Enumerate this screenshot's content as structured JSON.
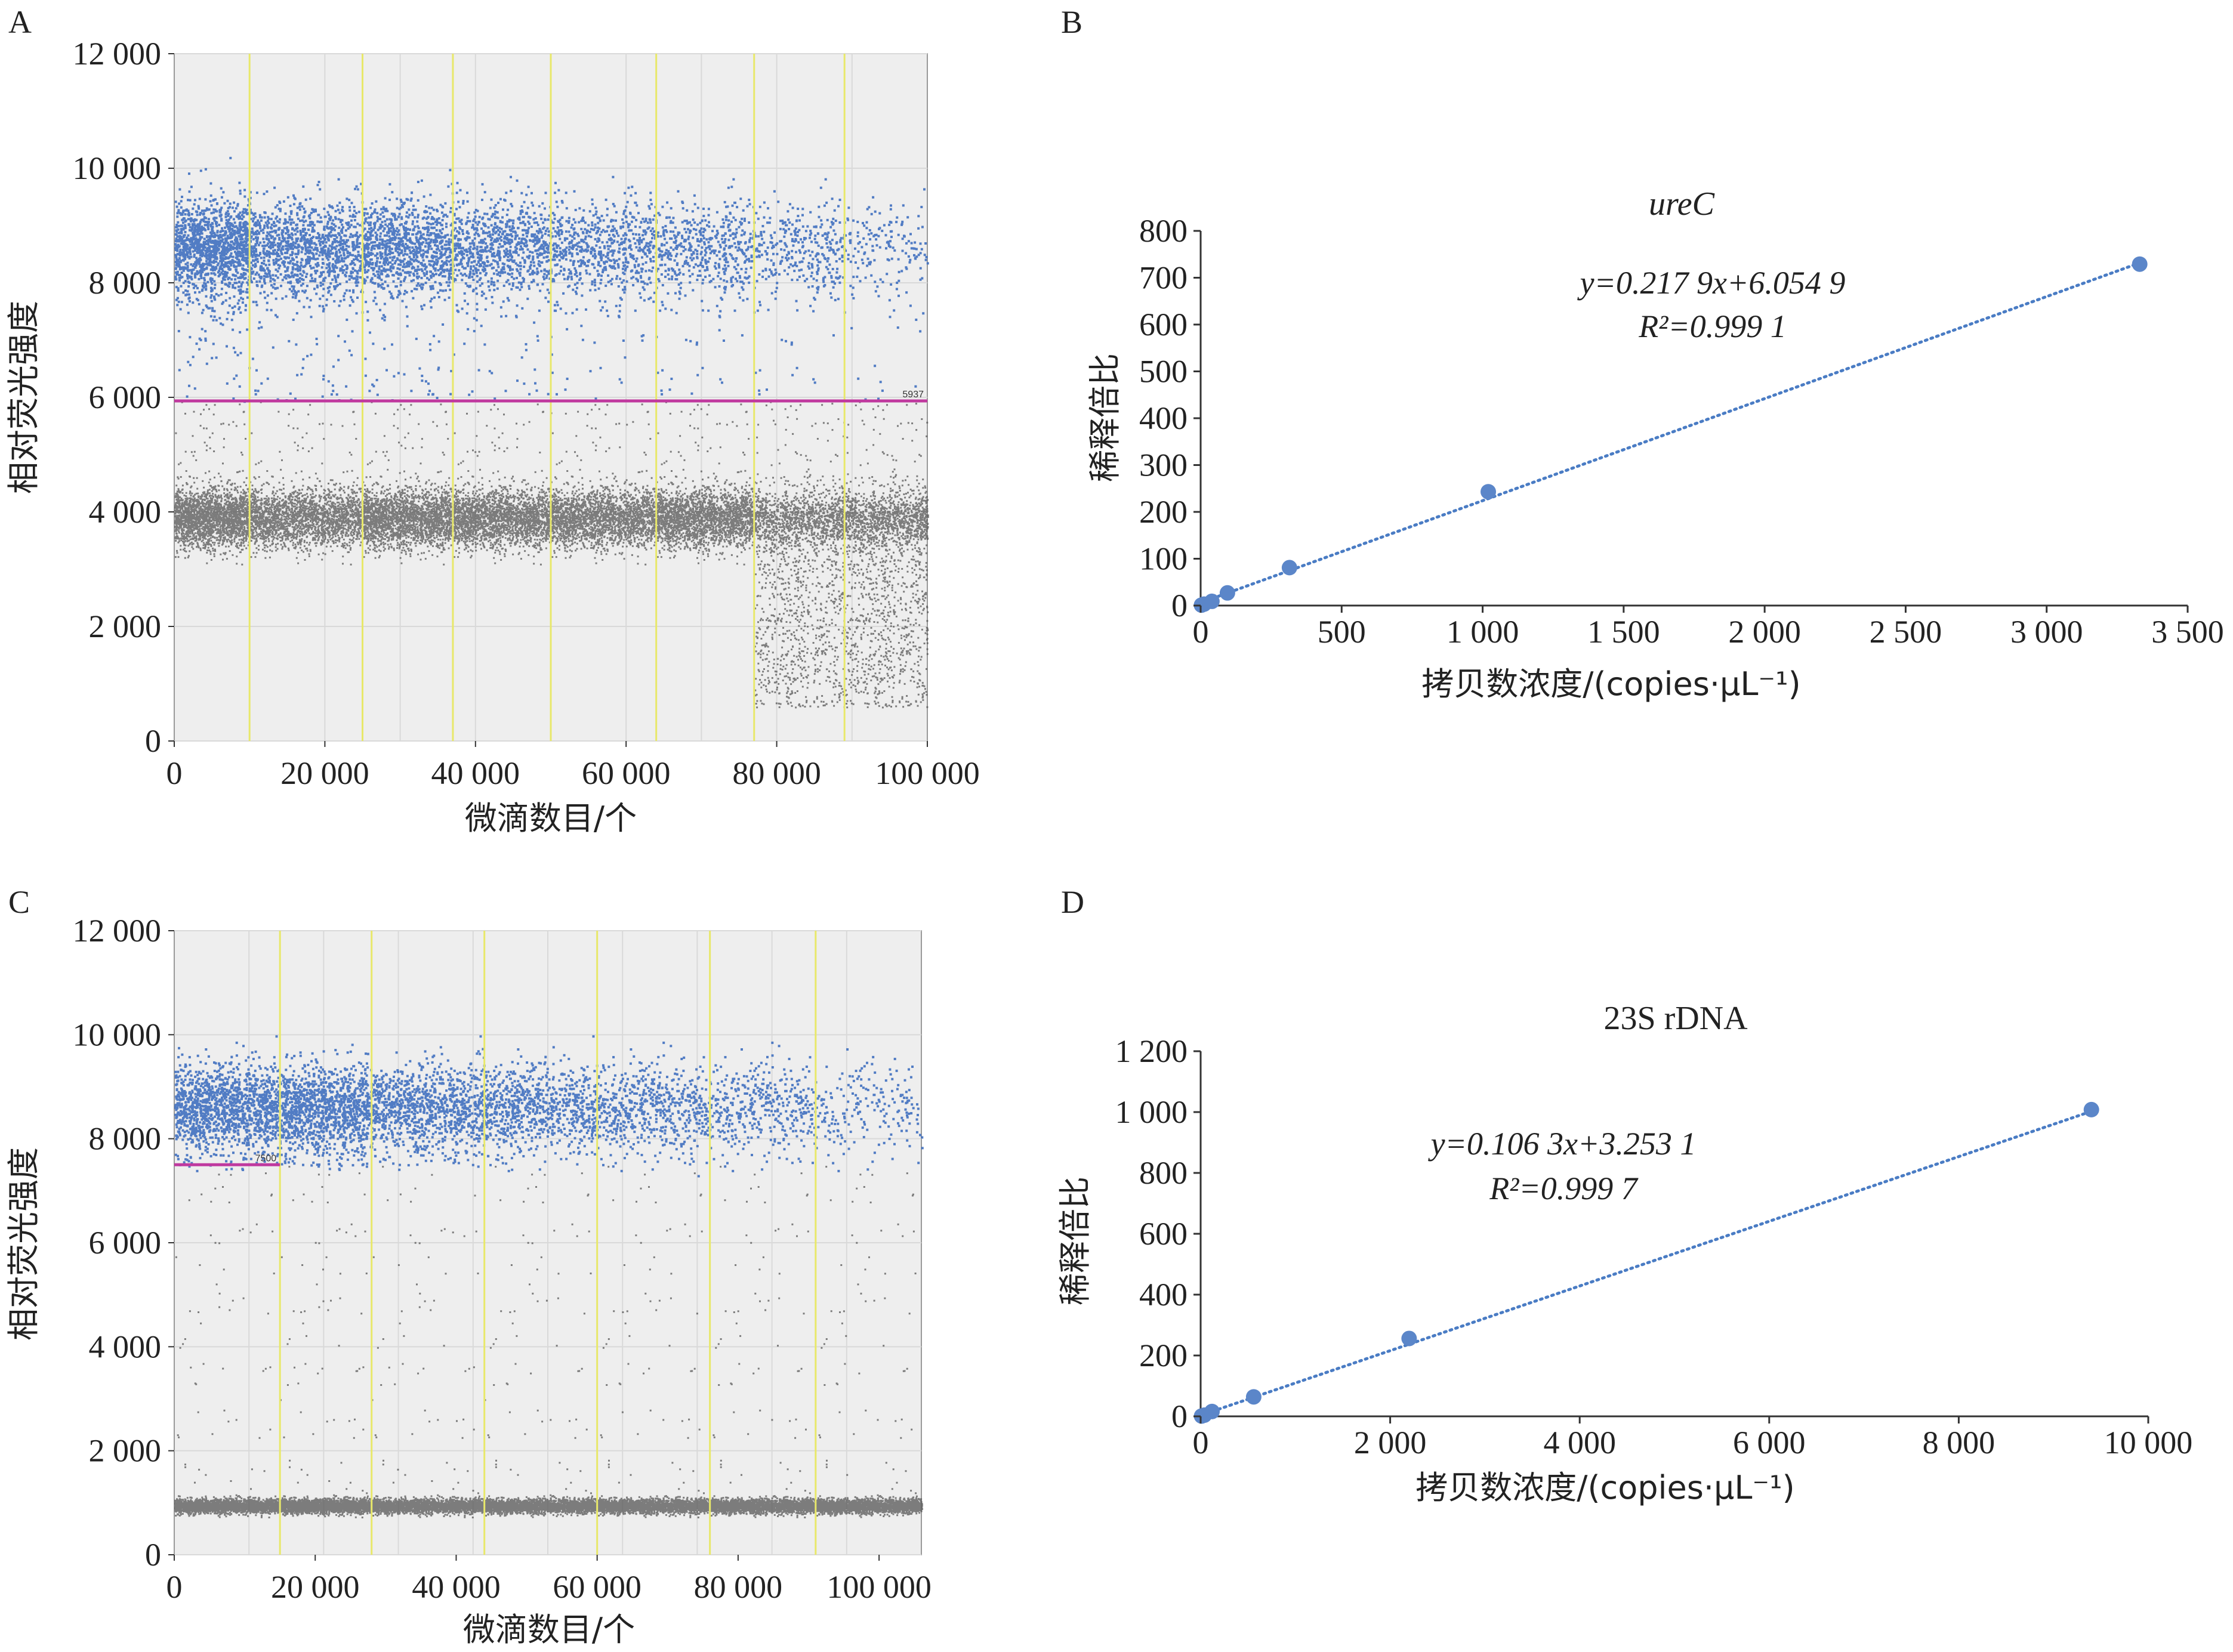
{
  "panels": {
    "A": {
      "letter": "A",
      "ylabel": "相对荧光强度",
      "xlabel": "微滴数目/个"
    },
    "B": {
      "letter": "B",
      "ylabel": "稀释倍比",
      "xlabel": "拷贝数浓度/(copies·μL⁻¹)",
      "title": "ureC",
      "equation": "y=0.217 9x+6.054 9",
      "r2": "R²=0.999 1"
    },
    "C": {
      "letter": "C",
      "ylabel": "相对荧光强度",
      "xlabel": "微滴数目/个"
    },
    "D": {
      "letter": "D",
      "ylabel": "稀释倍比",
      "xlabel": "拷贝数浓度/(copies·μL⁻¹)",
      "title": "23S rDNA",
      "equation": "y=0.106 3x+3.253 1",
      "r2": "R²=0.999 7"
    }
  },
  "colors": {
    "positive": "#3f6fbf",
    "negative": "#555555",
    "threshold": "#c0399f",
    "well_divider": "#e8e86a",
    "fit": "#4a7cc4",
    "marker": "#5b86c9"
  },
  "chart_data": [
    {
      "type": "scatter",
      "panel": "A",
      "xlabel": "微滴数目/个",
      "ylabel": "相对荧光强度",
      "xlim": [
        0,
        100000
      ],
      "ylim": [
        0,
        12000
      ],
      "xticks": [
        0,
        20000,
        40000,
        60000,
        80000,
        100000
      ],
      "xtick_labels": [
        "0",
        "20 000",
        "40 000",
        "60 000",
        "80 000",
        "100 000"
      ],
      "yticks": [
        0,
        2000,
        4000,
        6000,
        8000,
        10000,
        12000
      ],
      "ytick_labels": [
        "0",
        "2 000",
        "4 000",
        "6 000",
        "8 000",
        "10 000",
        "12 000"
      ],
      "threshold": 5937,
      "threshold_label": "5937",
      "well_boundaries": [
        10000,
        25000,
        37000,
        50000,
        64000,
        77000,
        89000
      ],
      "positive_band_center": 8600,
      "negative_band_center": 3900,
      "grid": true
    },
    {
      "type": "scatter",
      "panel": "B",
      "title": "ureC",
      "xlabel": "拷贝数浓度/(copies·μL⁻¹)",
      "ylabel": "稀释倍比",
      "xlim": [
        0,
        3500
      ],
      "ylim": [
        0,
        800
      ],
      "xticks": [
        0,
        500,
        1000,
        1500,
        2000,
        2500,
        3000,
        3500
      ],
      "xtick_labels": [
        "0",
        "500",
        "1 000",
        "1 500",
        "2 000",
        "2 500",
        "3 000",
        "3 500"
      ],
      "yticks": [
        0,
        100,
        200,
        300,
        400,
        500,
        600,
        700,
        800
      ],
      "ytick_labels": [
        "0",
        "100",
        "200",
        "300",
        "400",
        "500",
        "600",
        "700",
        "800"
      ],
      "points": [
        [
          3,
          1
        ],
        [
          12,
          3
        ],
        [
          40,
          9
        ],
        [
          95,
          27
        ],
        [
          315,
          81
        ],
        [
          1020,
          243
        ],
        [
          3330,
          729
        ]
      ],
      "fit": {
        "slope": 0.2179,
        "intercept": 6.0549
      },
      "grid": false
    },
    {
      "type": "scatter",
      "panel": "C",
      "xlabel": "微滴数目/个",
      "ylabel": "相对荧光强度",
      "xlim": [
        0,
        106000
      ],
      "ylim": [
        0,
        12000
      ],
      "xticks": [
        0,
        20000,
        40000,
        60000,
        80000,
        100000
      ],
      "xtick_labels": [
        "0",
        "20 000",
        "40 000",
        "60 000",
        "80 000",
        "100 000"
      ],
      "yticks": [
        0,
        2000,
        4000,
        6000,
        8000,
        10000,
        12000
      ],
      "ytick_labels": [
        "0",
        "2 000",
        "4 000",
        "6 000",
        "8 000",
        "10 000",
        "12 000"
      ],
      "threshold": 7500,
      "threshold_label": "7500",
      "well_boundaries": [
        15000,
        28000,
        44000,
        60000,
        76000,
        91000
      ],
      "positive_band_center": 8600,
      "negative_band_center": 950,
      "grid": true
    },
    {
      "type": "scatter",
      "panel": "D",
      "title": "23S rDNA",
      "xlabel": "拷贝数浓度/(copies·μL⁻¹)",
      "ylabel": "稀释倍比",
      "xlim": [
        0,
        10000
      ],
      "ylim": [
        0,
        1200
      ],
      "xticks": [
        0,
        2000,
        4000,
        6000,
        8000,
        10000
      ],
      "xtick_labels": [
        "0",
        "2 000",
        "4 000",
        "6 000",
        "8 000",
        "10 000"
      ],
      "yticks": [
        0,
        200,
        400,
        600,
        800,
        1000,
        1200
      ],
      "ytick_labels": [
        "0",
        "200",
        "400",
        "600",
        "800",
        "1 000",
        "1 200"
      ],
      "points": [
        [
          10,
          1
        ],
        [
          40,
          4
        ],
        [
          120,
          16
        ],
        [
          560,
          64
        ],
        [
          2200,
          256
        ],
        [
          9400,
          1008
        ]
      ],
      "fit": {
        "slope": 0.1063,
        "intercept": 3.2531
      },
      "grid": false
    }
  ]
}
